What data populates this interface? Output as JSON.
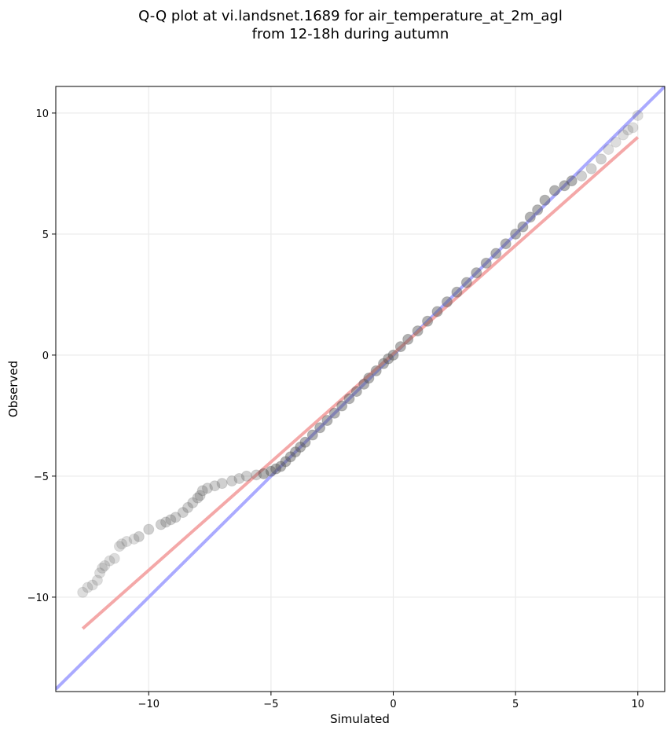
{
  "chart_data": {
    "type": "scatter",
    "title_line1": "Q-Q plot at vi.landsnet.1689 for air_temperature_at_2m_agl",
    "title_line2": "from 12-18h during autumn",
    "xlabel": "Simulated",
    "ylabel": "Observed",
    "xlim": [
      -13.8,
      11.1
    ],
    "ylim": [
      -13.9,
      11.1
    ],
    "xticks": [
      -10,
      -5,
      0,
      5,
      10
    ],
    "yticks": [
      -10,
      -5,
      0,
      5,
      10
    ],
    "xtick_labels": [
      "−10",
      "−5",
      "0",
      "5",
      "10"
    ],
    "ytick_labels": [
      "−10",
      "−5",
      "0",
      "5",
      "10"
    ],
    "grid": true,
    "identity_line": {
      "color": "#aaaaff",
      "x": [
        -13.8,
        11.1
      ],
      "y": [
        -13.8,
        11.1
      ]
    },
    "fit_line": {
      "color": "#f4a8a8",
      "x": [
        -12.7,
        10.0
      ],
      "y": [
        -11.3,
        9.0
      ]
    },
    "points": {
      "color": "#555555",
      "x": [
        -12.7,
        -12.5,
        -12.3,
        -12.1,
        -12.0,
        -11.9,
        -11.8,
        -11.6,
        -11.4,
        -11.2,
        -11.1,
        -10.9,
        -10.6,
        -10.4,
        -10.0,
        -9.5,
        -9.3,
        -9.1,
        -8.9,
        -8.6,
        -8.4,
        -8.2,
        -8.0,
        -7.9,
        -7.8,
        -7.6,
        -7.3,
        -7.0,
        -6.6,
        -6.3,
        -6.0,
        -5.6,
        -5.3,
        -5.0,
        -4.8,
        -4.6,
        -4.4,
        -4.2,
        -4.0,
        -3.8,
        -3.6,
        -3.3,
        -3.0,
        -2.7,
        -2.4,
        -2.1,
        -1.8,
        -1.5,
        -1.2,
        -1.0,
        -0.7,
        -0.4,
        -0.2,
        0.0,
        0.3,
        0.6,
        1.0,
        1.4,
        1.8,
        2.2,
        2.6,
        3.0,
        3.4,
        3.8,
        4.2,
        4.6,
        5.0,
        5.3,
        5.6,
        5.9,
        6.2,
        6.6,
        7.0,
        7.3,
        7.7,
        8.1,
        8.5,
        8.8,
        9.1,
        9.4,
        9.6,
        9.8,
        10.0
      ],
      "y": [
        -9.8,
        -9.6,
        -9.5,
        -9.3,
        -9.0,
        -8.8,
        -8.7,
        -8.5,
        -8.4,
        -7.9,
        -7.8,
        -7.7,
        -7.6,
        -7.5,
        -7.2,
        -7.0,
        -6.9,
        -6.8,
        -6.7,
        -6.5,
        -6.3,
        -6.1,
        -5.9,
        -5.8,
        -5.6,
        -5.5,
        -5.4,
        -5.3,
        -5.2,
        -5.1,
        -5.0,
        -4.95,
        -4.9,
        -4.8,
        -4.7,
        -4.6,
        -4.4,
        -4.2,
        -4.0,
        -3.8,
        -3.6,
        -3.3,
        -3.0,
        -2.7,
        -2.4,
        -2.1,
        -1.8,
        -1.5,
        -1.2,
        -0.95,
        -0.65,
        -0.35,
        -0.15,
        0.0,
        0.35,
        0.65,
        1.0,
        1.4,
        1.8,
        2.2,
        2.6,
        3.0,
        3.4,
        3.8,
        4.2,
        4.6,
        5.0,
        5.3,
        5.7,
        6.0,
        6.4,
        6.8,
        7.0,
        7.2,
        7.4,
        7.7,
        8.1,
        8.5,
        8.8,
        9.1,
        9.3,
        9.4,
        9.9
      ]
    }
  }
}
